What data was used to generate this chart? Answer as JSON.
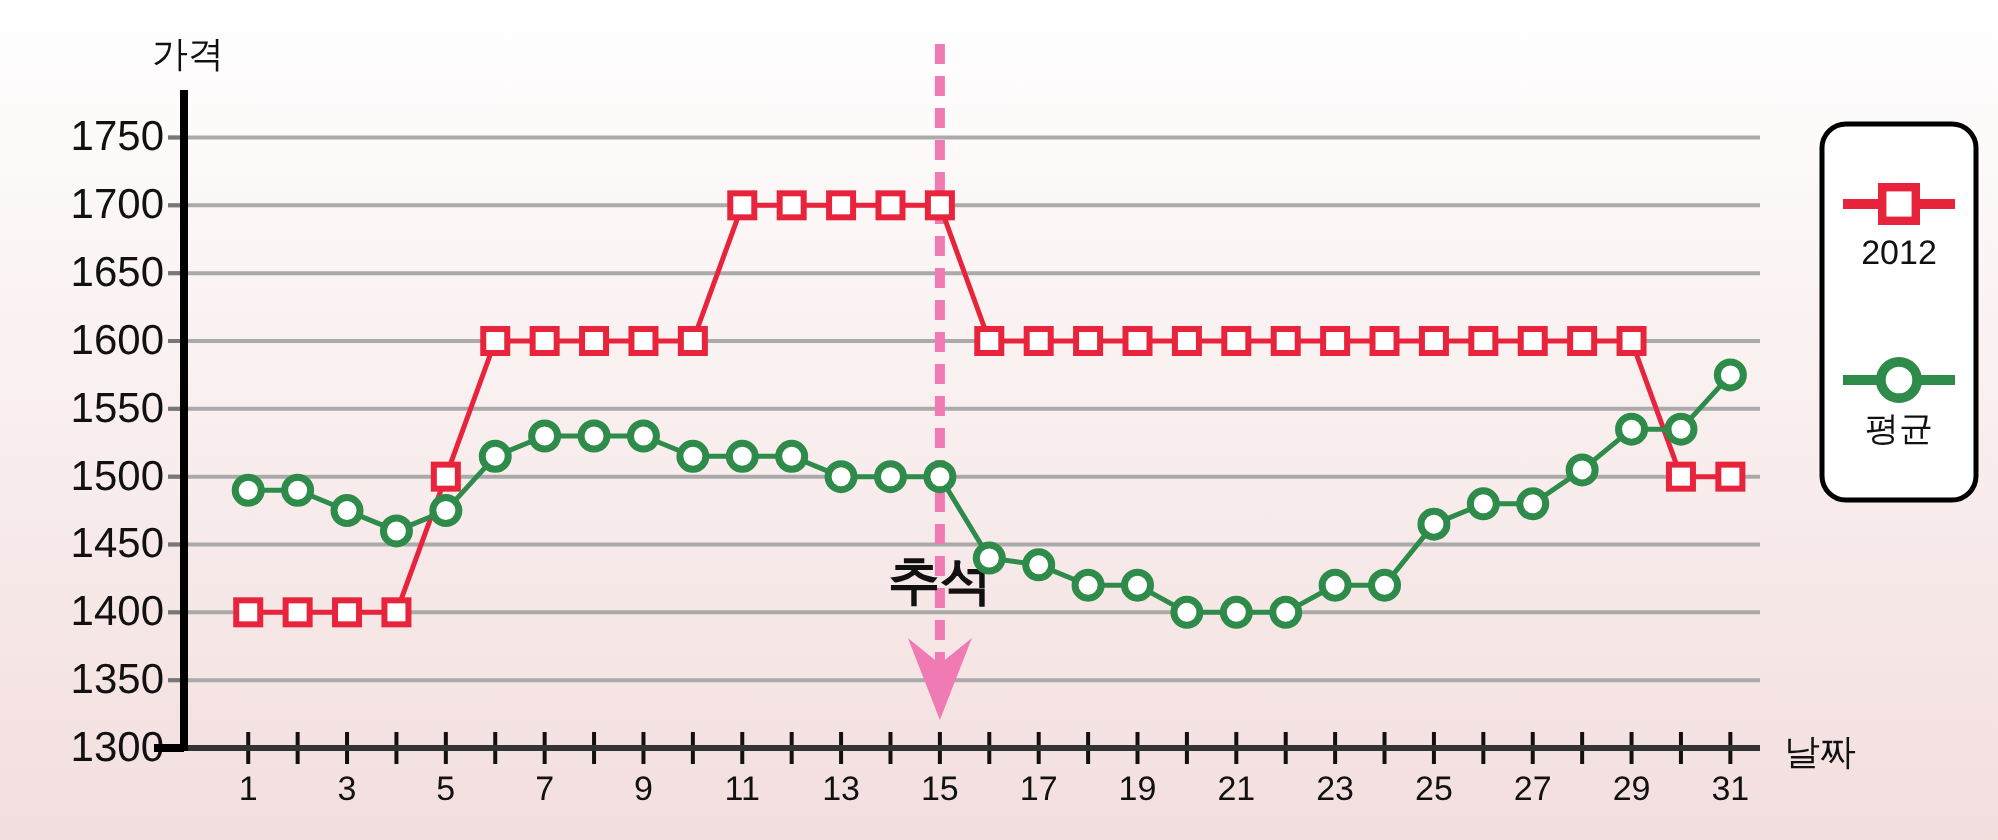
{
  "chart_data": {
    "type": "line",
    "xlabel": "날짜",
    "ylabel": "가격",
    "x": [
      1,
      2,
      3,
      4,
      5,
      6,
      7,
      8,
      9,
      10,
      11,
      12,
      13,
      14,
      15,
      16,
      17,
      18,
      19,
      20,
      21,
      22,
      23,
      24,
      25,
      26,
      27,
      28,
      29,
      30,
      31
    ],
    "series": [
      {
        "name": "2012",
        "color": "#e8243c",
        "marker": "square",
        "values": [
          1400,
          1400,
          1400,
          1400,
          1500,
          1600,
          1600,
          1600,
          1600,
          1600,
          1700,
          1700,
          1700,
          1700,
          1700,
          1600,
          1600,
          1600,
          1600,
          1600,
          1600,
          1600,
          1600,
          1600,
          1600,
          1600,
          1600,
          1600,
          1600,
          1500,
          1500
        ]
      },
      {
        "name": "평균",
        "color": "#2e8b4a",
        "marker": "circle",
        "values": [
          1490,
          1490,
          1475,
          1460,
          1475,
          1515,
          1530,
          1530,
          1530,
          1515,
          1515,
          1515,
          1500,
          1500,
          1500,
          1440,
          1435,
          1420,
          1420,
          1400,
          1400,
          1400,
          1420,
          1420,
          1465,
          1480,
          1480,
          1505,
          1535,
          1535,
          1575
        ]
      }
    ],
    "xlim": [
      -0.3,
      31.6
    ],
    "xticks": [
      1,
      {
        "value": 2,
        "label": null
      },
      3,
      {
        "value": 4,
        "label": null
      },
      5,
      {
        "value": 6,
        "label": null
      },
      7,
      {
        "value": 8,
        "label": null
      },
      9,
      {
        "value": 10,
        "label": null
      },
      11,
      {
        "value": 12,
        "label": null
      },
      13,
      {
        "value": 14,
        "label": null
      },
      15,
      {
        "value": 16,
        "label": null
      },
      17,
      {
        "value": 18,
        "label": null
      },
      19,
      {
        "value": 20,
        "label": null
      },
      21,
      {
        "value": 22,
        "label": null
      },
      23,
      {
        "value": 24,
        "label": null
      },
      25,
      {
        "value": 26,
        "label": null
      },
      27,
      {
        "value": 28,
        "label": null
      },
      29,
      {
        "value": 30,
        "label": null
      },
      31
    ],
    "ylim": [
      1300,
      1785
    ],
    "yticks": [
      1300,
      1350,
      1400,
      1450,
      1500,
      1550,
      1600,
      1650,
      1700,
      1750
    ],
    "grid": "y",
    "legend": "right",
    "line_style": "solid",
    "ref_lines": [
      {
        "axis": "x",
        "value": 15,
        "label": "추석",
        "color": "#f07ab4",
        "line_style": "dashed"
      }
    ]
  }
}
